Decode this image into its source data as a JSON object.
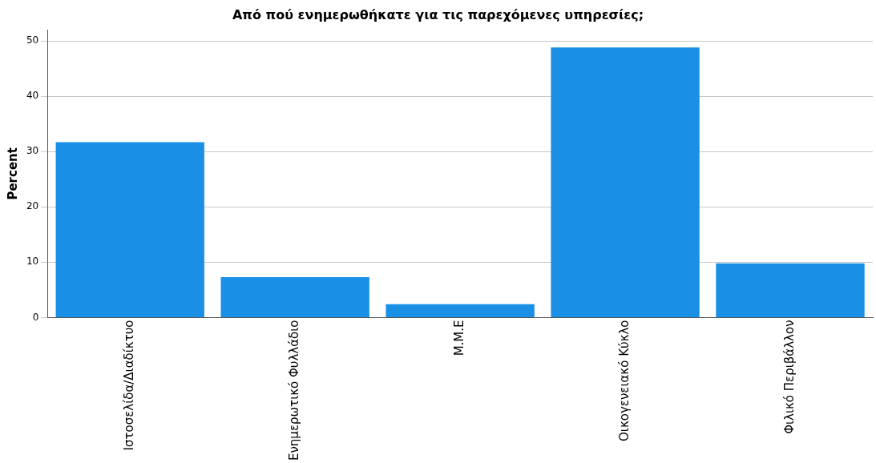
{
  "chart_data": {
    "type": "bar",
    "title": "Από πού ενημερωθήκατε για τις παρεχόμενες υπηρεσίες;",
    "ylabel": "Percent",
    "categories": [
      "Ιστοσελίδα/Διαδίκτυο",
      "Ενημερωτικό Φυλλάδιο",
      "Μ.Μ.Ε",
      "Οικογενειακό Κύκλο",
      "Φιλικό Περιβάλλον"
    ],
    "values": [
      31.7,
      7.3,
      2.4,
      48.8,
      9.8
    ],
    "color": "#1990e6",
    "ylim": [
      0,
      52
    ],
    "yticks": [
      0,
      10,
      20,
      30,
      40,
      50
    ],
    "grid": "y"
  }
}
